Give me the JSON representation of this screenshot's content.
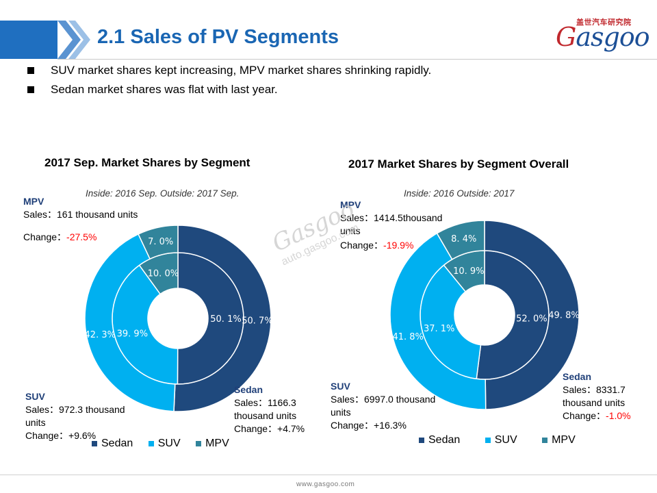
{
  "header": {
    "title": "2.1 Sales of PV Segments"
  },
  "logo": {
    "cn": "盖世汽车研究院",
    "word": "Gasgoo"
  },
  "watermark": {
    "word": "Gasgoo",
    "url": "auto.gasgoo.com"
  },
  "footer": {
    "url": "www.gasgoo.com"
  },
  "bullets": [
    "SUV market shares kept increasing, MPV market shares shrinking rapidly.",
    "Sedan market shares was flat with last year."
  ],
  "colors": {
    "Sedan": "#1f497d",
    "SUV": "#00b0f0",
    "MPV": "#31849b",
    "change_negative": "#ff0000",
    "title": "#1a66b3"
  },
  "chart_data": [
    {
      "type": "donut",
      "title": "2017 Sep. Market Shares by Segment",
      "subtitle": "Inside: 2016 Sep.  Outside: 2017 Sep.",
      "categories": [
        "Sedan",
        "SUV",
        "MPV"
      ],
      "series": [
        {
          "name": "Inside",
          "values": [
            50.1,
            39.9,
            10.0
          ],
          "labels": [
            "50. 1%",
            "39. 9%",
            "10. 0%"
          ]
        },
        {
          "name": "Outside",
          "values": [
            50.7,
            42.3,
            7.0
          ],
          "labels": [
            "50. 7%",
            "42. 3%",
            "7. 0%"
          ]
        }
      ],
      "annotations": {
        "MPV": {
          "name": "MPV",
          "sales": "Sales：161 thousand units",
          "change_prefix": "Change：",
          "change": "-27.5%"
        },
        "SUV": {
          "name": "SUV",
          "sales": "Sales：972.3 thousand",
          "sales2": "units",
          "change_prefix": "Change：",
          "change": "+9.6%"
        },
        "Sedan": {
          "name": "Sedan",
          "sales": "Sales：1166.3",
          "sales2": "thousand units",
          "change_prefix": "Change：",
          "change": "+4.7%"
        }
      },
      "legend": [
        "Sedan",
        "SUV",
        "MPV"
      ],
      "legend_position": "bottom"
    },
    {
      "type": "donut",
      "title": "2017 Market Shares by Segment Overall",
      "subtitle": "Inside: 2016   Outside: 2017",
      "categories": [
        "Sedan",
        "SUV",
        "MPV"
      ],
      "series": [
        {
          "name": "Inside",
          "values": [
            52.0,
            37.1,
            10.9
          ],
          "labels": [
            "52. 0%",
            "37. 1%",
            "10. 9%"
          ]
        },
        {
          "name": "Outside",
          "values": [
            49.8,
            41.8,
            8.4
          ],
          "labels": [
            "49. 8%",
            "41. 8%",
            "8. 4%"
          ]
        }
      ],
      "annotations": {
        "MPV": {
          "name": "MPV",
          "sales": "Sales：1414.5thousand",
          "sales2": "units",
          "change_prefix": "Change：",
          "change": "-19.9%"
        },
        "SUV": {
          "name": "SUV",
          "sales": "Sales：6997.0 thousand",
          "sales2": "units",
          "change_prefix": "Change：",
          "change": "+16.3%"
        },
        "Sedan": {
          "name": "Sedan",
          "sales": "Sales：8331.7",
          "sales2": "thousand units",
          "change_prefix": "Change：",
          "change": "-1.0%"
        }
      },
      "legend": [
        "Sedan",
        "SUV",
        "MPV"
      ],
      "legend_position": "bottom"
    }
  ]
}
